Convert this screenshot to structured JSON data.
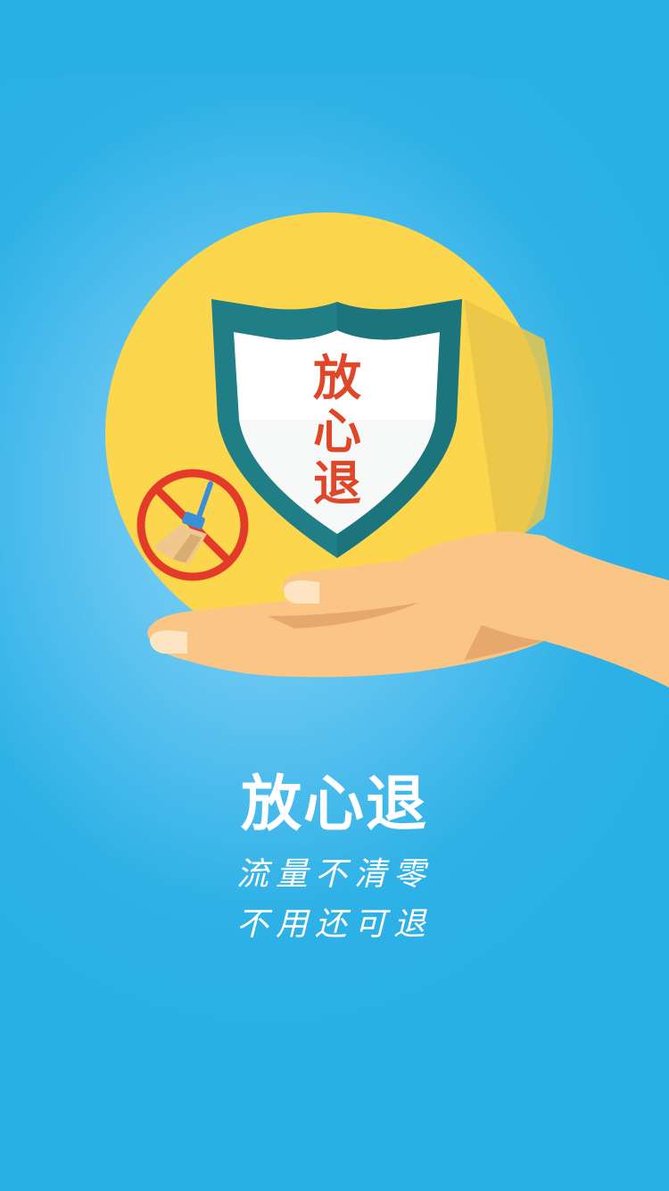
{
  "splash": {
    "shield_text": [
      "放",
      "心",
      "退"
    ],
    "title": "放心退",
    "subtitle_line1": "流量不清零",
    "subtitle_line2": "不用还可退"
  },
  "icons": {
    "shield": "shield-icon",
    "no_clean": "no-broom-icon",
    "hand": "hand-illustration"
  },
  "colors": {
    "background": "#2aafe5",
    "circle": "#fcd64d",
    "shield_border": "#1f7e86",
    "shield_text": "#e04628",
    "prohibit": "#e33a2a",
    "skin": "#fbc586",
    "text": "#ffffff"
  }
}
